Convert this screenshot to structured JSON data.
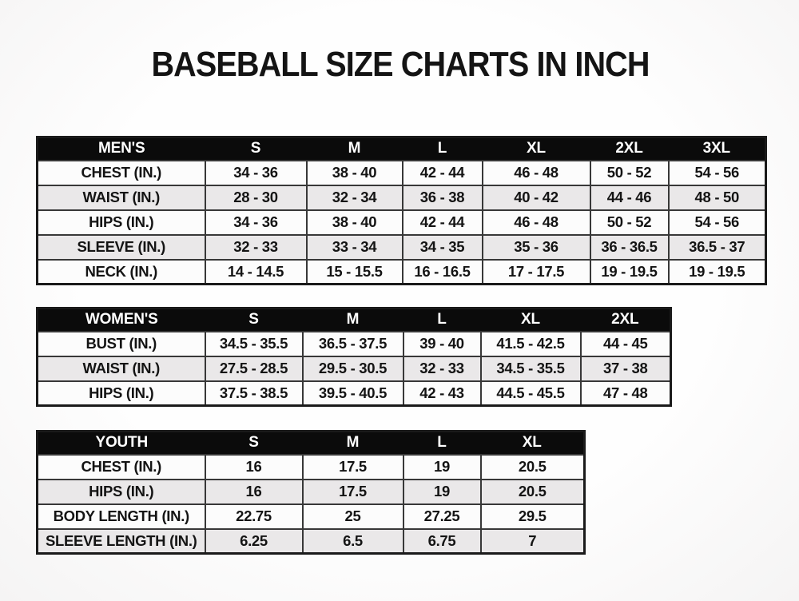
{
  "title": "BASEBALL SIZE CHARTS IN INCH",
  "colors": {
    "header_bg": "#0b0b0b",
    "header_text": "#ffffff",
    "row_bg": "#fcfcfc",
    "row_alt_bg": "#eae8e9",
    "border": "#383838",
    "border_outer": "#1a1a1a",
    "text": "#141414"
  },
  "chart_data": [
    {
      "type": "table",
      "title": "MEN'S",
      "columns": [
        "MEN'S",
        "S",
        "M",
        "L",
        "XL",
        "2XL",
        "3XL"
      ],
      "rows": [
        [
          "CHEST (IN.)",
          "34 - 36",
          "38 - 40",
          "42 - 44",
          "46 - 48",
          "50 - 52",
          "54 - 56"
        ],
        [
          "WAIST (IN.)",
          "28 - 30",
          "32 - 34",
          "36 - 38",
          "40 - 42",
          "44 - 46",
          "48 - 50"
        ],
        [
          "HIPS (IN.)",
          "34 - 36",
          "38 - 40",
          "42 - 44",
          "46 - 48",
          "50 - 52",
          "54 - 56"
        ],
        [
          "SLEEVE (IN.)",
          "32 - 33",
          "33 - 34",
          "34 - 35",
          "35 - 36",
          "36 - 36.5",
          "36.5 - 37"
        ],
        [
          "NECK (IN.)",
          "14 - 14.5",
          "15 - 15.5",
          "16 - 16.5",
          "17 - 17.5",
          "19 - 19.5",
          "19 - 19.5"
        ]
      ]
    },
    {
      "type": "table",
      "title": "WOMEN'S",
      "columns": [
        "WOMEN'S",
        "S",
        "M",
        "L",
        "XL",
        "2XL"
      ],
      "rows": [
        [
          "BUST (IN.)",
          "34.5 - 35.5",
          "36.5 - 37.5",
          "39 - 40",
          "41.5 - 42.5",
          "44 - 45"
        ],
        [
          "WAIST (IN.)",
          "27.5 - 28.5",
          "29.5 - 30.5",
          "32 - 33",
          "34.5 - 35.5",
          "37 - 38"
        ],
        [
          "HIPS (IN.)",
          "37.5 - 38.5",
          "39.5 - 40.5",
          "42 - 43",
          "44.5 - 45.5",
          "47 - 48"
        ]
      ]
    },
    {
      "type": "table",
      "title": "YOUTH",
      "columns": [
        "YOUTH",
        "S",
        "M",
        "L",
        "XL"
      ],
      "rows": [
        [
          "CHEST (IN.)",
          "16",
          "17.5",
          "19",
          "20.5"
        ],
        [
          "HIPS (IN.)",
          "16",
          "17.5",
          "19",
          "20.5"
        ],
        [
          "BODY LENGTH (IN.)",
          "22.75",
          "25",
          "27.25",
          "29.5"
        ],
        [
          "SLEEVE LENGTH (IN.)",
          "6.25",
          "6.5",
          "6.75",
          "7"
        ]
      ]
    }
  ]
}
